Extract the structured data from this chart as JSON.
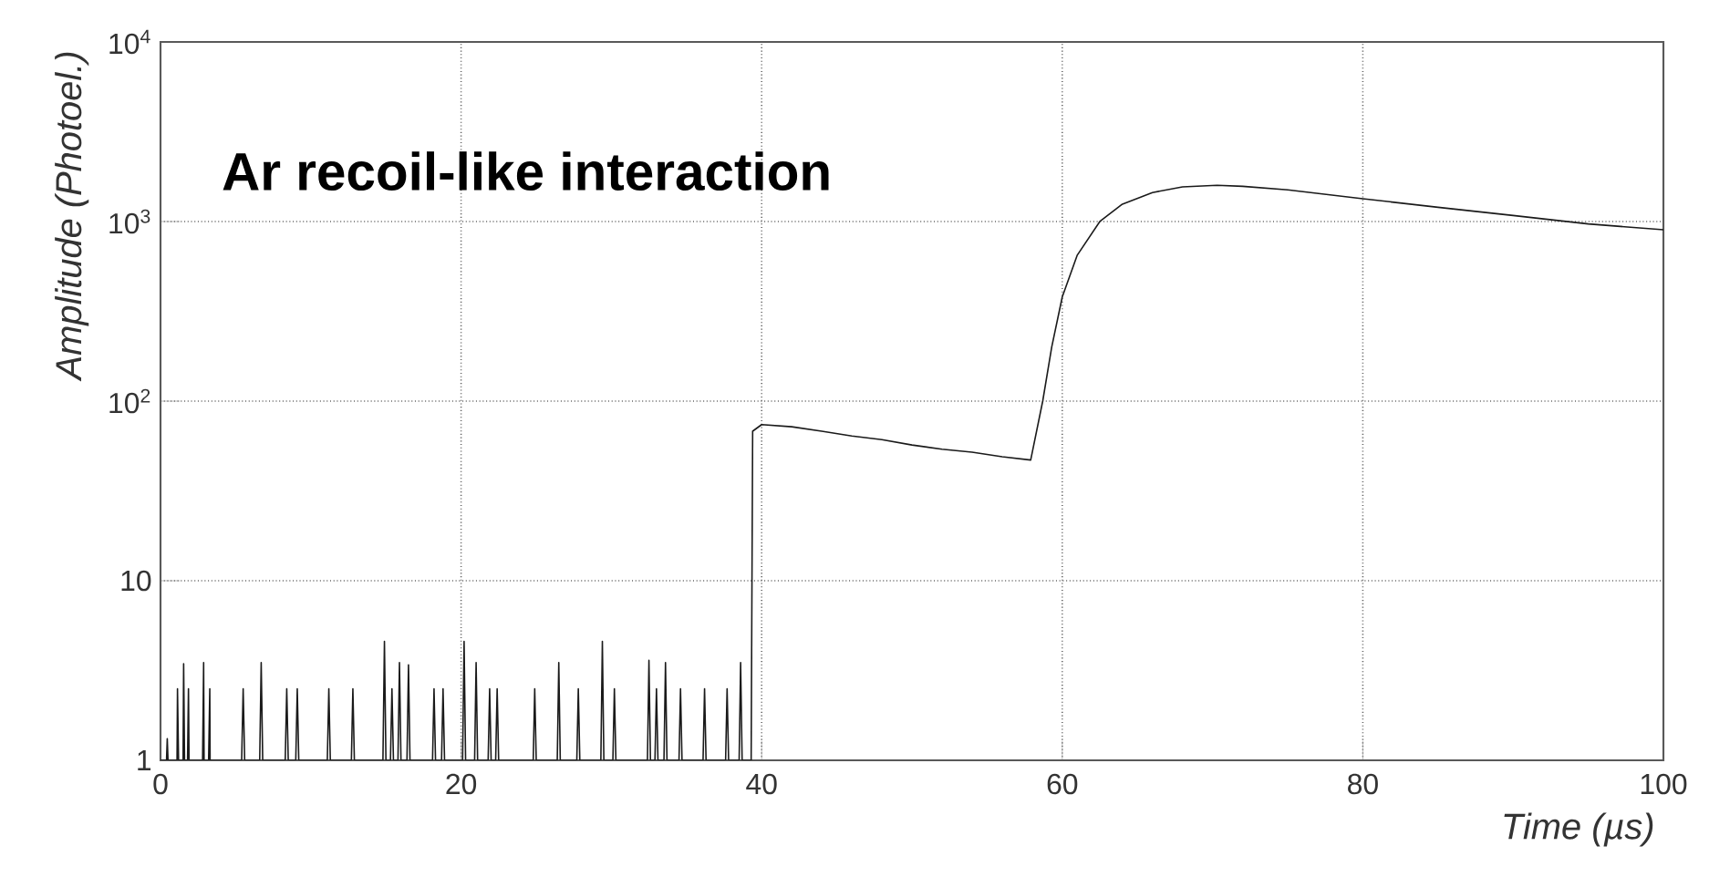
{
  "chart_data": {
    "type": "line",
    "title": "Ar recoil-like interaction",
    "xlabel": "Time (µs)",
    "ylabel": "Amplitude (Photoel.)",
    "log": "y",
    "grid": true,
    "marker": "none",
    "line_style": "solid",
    "xlim": [
      0,
      100
    ],
    "ylim": [
      1,
      10000
    ],
    "xticks": [
      0,
      20,
      40,
      60,
      80,
      100
    ],
    "yticks": [
      1,
      10,
      {
        "value": 100,
        "label": "10$^{2}$"
      },
      {
        "value": 1000,
        "label": "10$^{3}$"
      },
      {
        "value": 10000,
        "label": "10$^{4}$"
      }
    ],
    "series": [
      {
        "color": "#1a1a1a",
        "x": [
          0,
          0.4,
          0.45,
          0.5,
          1.1,
          1.13,
          1.2,
          1.5,
          1.54,
          1.6,
          1.8,
          1.86,
          1.9,
          2.8,
          2.87,
          2.9,
          3.2,
          3.28,
          3.3,
          5.4,
          5.5,
          5.6,
          6.6,
          6.7,
          6.8,
          8.3,
          8.4,
          8.5,
          9.0,
          9.1,
          9.2,
          11.1,
          11.2,
          11.3,
          12.7,
          12.8,
          12.9,
          14.8,
          14.9,
          15.0,
          15.3,
          15.4,
          15.5,
          15.8,
          15.9,
          16.0,
          16.4,
          16.5,
          16.6,
          18.1,
          18.2,
          18.3,
          18.7,
          18.8,
          18.9,
          20.1,
          20.2,
          20.3,
          20.9,
          21.0,
          21.1,
          21.8,
          21.9,
          22.0,
          22.3,
          22.4,
          22.5,
          24.8,
          24.9,
          25.0,
          26.4,
          26.5,
          26.6,
          27.7,
          27.8,
          27.9,
          29.3,
          29.4,
          29.5,
          30.1,
          30.2,
          30.3,
          32.4,
          32.5,
          32.6,
          32.9,
          33.0,
          33.1,
          33.5,
          33.6,
          33.7,
          34.5,
          34.6,
          34.7,
          36.1,
          36.2,
          36.3,
          37.6,
          37.7,
          37.8,
          38.5,
          38.6,
          38.7,
          39.3
        ],
        "values": [
          1,
          1,
          1.32,
          1,
          1,
          2.5,
          1,
          1,
          3.45,
          1,
          1,
          2.5,
          1,
          1,
          3.5,
          1,
          1,
          2.5,
          1,
          1,
          2.5,
          1,
          1,
          3.5,
          1,
          1,
          2.5,
          1,
          1,
          2.5,
          1,
          1,
          2.5,
          1,
          1,
          2.5,
          1,
          1,
          4.6,
          1,
          1,
          2.5,
          1,
          1,
          3.5,
          1,
          1,
          3.4,
          1,
          1,
          2.5,
          1,
          1,
          2.5,
          1,
          1,
          4.6,
          1,
          1,
          3.5,
          1,
          1,
          2.5,
          1,
          1,
          2.5,
          1,
          1,
          2.5,
          1,
          1,
          3.5,
          1,
          1,
          2.5,
          1,
          1,
          4.6,
          1,
          1,
          2.5,
          1,
          1,
          3.6,
          1,
          1,
          2.5,
          1,
          1,
          3.5,
          1,
          1,
          2.5,
          1,
          1,
          2.5,
          1,
          1,
          2.5,
          1,
          1,
          3.5,
          1,
          1
        ]
      },
      {
        "color": "#1a1a1a",
        "x": [
          39.3,
          39.4,
          40,
          42,
          44,
          46,
          48,
          50,
          52,
          54,
          56,
          57.9,
          58.7,
          59.3,
          60,
          61,
          62.5,
          64,
          66,
          68,
          70.3,
          72,
          75,
          80,
          85,
          90,
          95,
          100
        ],
        "values": [
          1,
          68,
          74,
          72,
          68,
          64,
          61,
          57,
          54,
          52,
          49,
          47,
          100,
          200,
          380,
          650,
          1000,
          1250,
          1450,
          1560,
          1590,
          1570,
          1500,
          1340,
          1200,
          1080,
          970,
          900
        ]
      }
    ]
  }
}
